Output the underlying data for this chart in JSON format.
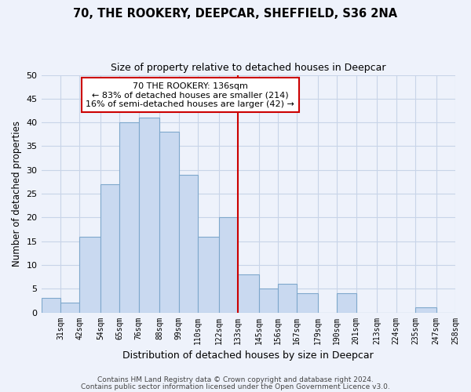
{
  "title": "70, THE ROOKERY, DEEPCAR, SHEFFIELD, S36 2NA",
  "subtitle": "Size of property relative to detached houses in Deepcar",
  "xlabel": "Distribution of detached houses by size in Deepcar",
  "ylabel": "Number of detached properties",
  "bar_labels": [
    "31sqm",
    "42sqm",
    "54sqm",
    "65sqm",
    "76sqm",
    "88sqm",
    "99sqm",
    "110sqm",
    "122sqm",
    "133sqm",
    "145sqm",
    "156sqm",
    "167sqm",
    "179sqm",
    "190sqm",
    "201sqm",
    "213sqm",
    "224sqm",
    "235sqm",
    "247sqm",
    "258sqm"
  ],
  "bar_heights": [
    3,
    2,
    16,
    27,
    40,
    41,
    38,
    29,
    16,
    20,
    8,
    5,
    6,
    4,
    0,
    4,
    0,
    0,
    0,
    1,
    0
  ],
  "bar_color": "#c9d9f0",
  "bar_edge_color": "#7fa8cc",
  "grid_color": "#c8d4e8",
  "background_color": "#eef2fb",
  "annotation_title": "70 THE ROOKERY: 136sqm",
  "annotation_line1": "← 83% of detached houses are smaller (214)",
  "annotation_line2": "16% of semi-detached houses are larger (42) →",
  "annotation_box_color": "#ffffff",
  "annotation_border_color": "#cc0000",
  "vline_color": "#cc0000",
  "vline_x_label": "133sqm",
  "ylim": [
    0,
    50
  ],
  "yticks": [
    0,
    5,
    10,
    15,
    20,
    25,
    30,
    35,
    40,
    45,
    50
  ],
  "footnote1": "Contains HM Land Registry data © Crown copyright and database right 2024.",
  "footnote2": "Contains public sector information licensed under the Open Government Licence v3.0."
}
